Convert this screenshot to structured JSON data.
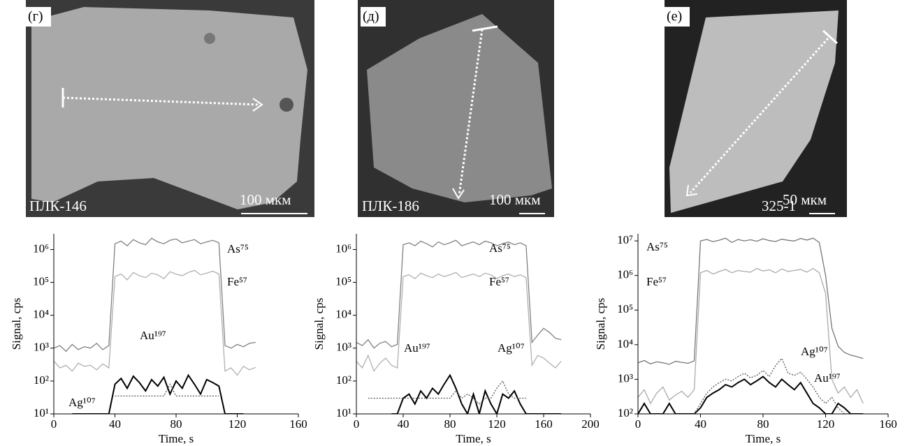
{
  "panels": [
    {
      "label": "(г)",
      "sample": "ПЛК-146",
      "scale": "100 мкм"
    },
    {
      "label": "(д)",
      "sample": "ПЛК-186",
      "scale": "100 мкм"
    },
    {
      "label": "(е)",
      "sample": "325-1",
      "scale": "50 мкм"
    }
  ],
  "chart_data": [
    {
      "type": "line",
      "xlabel": "Time, s",
      "ylabel": "Signal, cps",
      "log_y": true,
      "xlim": [
        0,
        160
      ],
      "xticks": [
        0,
        40,
        80,
        120,
        160
      ],
      "ylim": [
        10,
        3000000
      ],
      "yticks": [
        {
          "value": 10,
          "label": "10¹"
        },
        {
          "value": 100,
          "label": "10²"
        },
        {
          "value": 1000,
          "label": "10³"
        },
        {
          "value": 10000,
          "label": "10⁴"
        },
        {
          "value": 100000,
          "label": "10⁵"
        },
        {
          "value": 1000000,
          "label": "10⁶"
        }
      ],
      "x": [
        0,
        4,
        8,
        12,
        16,
        20,
        24,
        28,
        32,
        36,
        40,
        44,
        48,
        52,
        56,
        60,
        64,
        68,
        72,
        76,
        80,
        84,
        88,
        92,
        96,
        100,
        104,
        108,
        112,
        116,
        120,
        124,
        128,
        132
      ],
      "series": [
        {
          "name": "As⁷⁵",
          "color": "#808080",
          "style": "solid",
          "values": [
            1000,
            1200,
            800,
            1300,
            900,
            1100,
            1000,
            1400,
            900,
            1200,
            1500000,
            1800000,
            1300000,
            2000000,
            1600000,
            1400000,
            2200000,
            1700000,
            1500000,
            1900000,
            2100000,
            1600000,
            1800000,
            2000000,
            1500000,
            1700000,
            1900000,
            1600000,
            1200,
            1000,
            1300,
            1100,
            1400,
            1500
          ]
        },
        {
          "name": "Fe⁵⁷",
          "color": "#b0b0b0",
          "style": "solid",
          "values": [
            400,
            250,
            300,
            200,
            350,
            280,
            300,
            220,
            330,
            250,
            150000,
            180000,
            120000,
            200000,
            160000,
            140000,
            190000,
            170000,
            130000,
            210000,
            180000,
            160000,
            200000,
            230000,
            170000,
            190000,
            220000,
            180000,
            200,
            250,
            150,
            280,
            220,
            260
          ]
        },
        {
          "name": "Au¹⁹⁷",
          "color": "#000000",
          "style": "solid",
          "values": [
            null,
            null,
            null,
            10,
            10,
            10,
            10,
            10,
            10,
            10,
            80,
            120,
            60,
            140,
            90,
            50,
            110,
            70,
            130,
            40,
            100,
            60,
            150,
            80,
            40,
            110,
            90,
            70,
            10,
            10,
            10,
            10,
            null,
            null
          ]
        },
        {
          "name": "Ag¹⁰⁷",
          "color": "#555555",
          "style": "dotted",
          "values": [
            null,
            null,
            null,
            null,
            null,
            null,
            null,
            null,
            null,
            null,
            35,
            35,
            35,
            35,
            35,
            35,
            35,
            35,
            35,
            80,
            35,
            35,
            35,
            35,
            35,
            35,
            35,
            35,
            null,
            null,
            null,
            null,
            null,
            null
          ]
        }
      ]
    },
    {
      "type": "line",
      "xlabel": "Time, s",
      "ylabel": "Signal, cps",
      "log_y": true,
      "xlim": [
        0,
        200
      ],
      "xticks": [
        0,
        40,
        80,
        120,
        160,
        200
      ],
      "ylim": [
        10,
        3000000
      ],
      "yticks": [
        {
          "value": 10,
          "label": "10¹"
        },
        {
          "value": 100,
          "label": "10²"
        },
        {
          "value": 1000,
          "label": "10³"
        },
        {
          "value": 10000,
          "label": "10⁴"
        },
        {
          "value": 100000,
          "label": "10⁵"
        },
        {
          "value": 1000000,
          "label": "10⁶"
        }
      ],
      "x": [
        0,
        5,
        10,
        15,
        20,
        25,
        30,
        35,
        40,
        45,
        50,
        55,
        60,
        65,
        70,
        75,
        80,
        85,
        90,
        95,
        100,
        105,
        110,
        115,
        120,
        125,
        130,
        135,
        140,
        145,
        150,
        155,
        160,
        165,
        170,
        175
      ],
      "series": [
        {
          "name": "As⁷⁵",
          "color": "#808080",
          "style": "solid",
          "values": [
            1500,
            1200,
            1800,
            1000,
            1400,
            1600,
            1100,
            1300,
            1400000,
            1600000,
            1300000,
            1800000,
            1500000,
            1200000,
            1700000,
            1400000,
            1600000,
            1900000,
            1300000,
            1500000,
            1700000,
            1400000,
            1800000,
            1600000,
            1300000,
            1500000,
            1700000,
            1400000,
            1600000,
            1300000,
            1500,
            2500,
            4000,
            3000,
            2000,
            1800
          ]
        },
        {
          "name": "Fe⁵⁷",
          "color": "#b0b0b0",
          "style": "solid",
          "values": [
            400,
            250,
            600,
            200,
            350,
            500,
            300,
            250,
            150000,
            170000,
            130000,
            190000,
            160000,
            140000,
            180000,
            150000,
            170000,
            200000,
            140000,
            160000,
            180000,
            150000,
            190000,
            170000,
            130000,
            160000,
            180000,
            150000,
            170000,
            140000,
            300,
            600,
            500,
            350,
            250,
            400
          ]
        },
        {
          "name": "Au¹⁹⁷",
          "color": "#000000",
          "style": "solid",
          "values": [
            null,
            null,
            null,
            null,
            null,
            null,
            10,
            10,
            30,
            40,
            20,
            50,
            30,
            60,
            40,
            80,
            150,
            60,
            20,
            10,
            40,
            10,
            50,
            20,
            10,
            40,
            30,
            50,
            20,
            10,
            10,
            10,
            10,
            10,
            10,
            10
          ]
        },
        {
          "name": "Ag¹⁰⁷",
          "color": "#555555",
          "style": "dotted",
          "values": [
            null,
            null,
            30,
            30,
            30,
            30,
            30,
            30,
            30,
            30,
            30,
            30,
            30,
            30,
            30,
            30,
            30,
            50,
            30,
            40,
            30,
            20,
            30,
            30,
            60,
            100,
            40,
            30,
            30,
            30,
            null,
            null,
            null,
            null,
            null,
            null
          ]
        }
      ]
    },
    {
      "type": "line",
      "xlabel": "Time, s",
      "ylabel": "Signal, cps",
      "log_y": true,
      "xlim": [
        0,
        160
      ],
      "xticks": [
        0,
        40,
        80,
        120,
        160
      ],
      "ylim": [
        100,
        16000000
      ],
      "yticks": [
        {
          "value": 100,
          "label": "10²"
        },
        {
          "value": 1000,
          "label": "10³"
        },
        {
          "value": 10000,
          "label": "10⁴"
        },
        {
          "value": 100000,
          "label": "10⁵"
        },
        {
          "value": 1000000,
          "label": "10⁶"
        },
        {
          "value": 10000000,
          "label": "10⁷"
        }
      ],
      "x": [
        0,
        4,
        8,
        12,
        16,
        20,
        24,
        28,
        32,
        36,
        40,
        44,
        48,
        52,
        56,
        60,
        64,
        68,
        72,
        76,
        80,
        84,
        88,
        92,
        96,
        100,
        104,
        108,
        112,
        116,
        120,
        124,
        128,
        132,
        136,
        140,
        144
      ],
      "series": [
        {
          "name": "As⁷⁵",
          "color": "#777777",
          "style": "solid",
          "values": [
            3000,
            3500,
            2800,
            3200,
            3000,
            2700,
            3300,
            3100,
            2900,
            3400,
            10000000,
            11000000,
            9500000,
            10500000,
            12000000,
            9000000,
            11000000,
            10000000,
            10800000,
            9800000,
            11500000,
            10200000,
            9600000,
            11200000,
            10400000,
            9900000,
            11800000,
            10600000,
            12000000,
            9000000,
            1000000,
            30000,
            9000,
            6000,
            5000,
            4500,
            4000
          ]
        },
        {
          "name": "Fe⁵⁷",
          "color": "#aaaaaa",
          "style": "solid",
          "values": [
            300,
            500,
            200,
            400,
            600,
            250,
            350,
            450,
            300,
            500,
            1200000,
            1400000,
            1100000,
            1300000,
            1500000,
            1200000,
            1400000,
            1300000,
            1250000,
            1600000,
            1350000,
            1450000,
            1200000,
            1550000,
            1300000,
            1400000,
            1500000,
            1250000,
            1600000,
            1200000,
            300000,
            1000,
            400,
            600,
            300,
            500,
            200
          ]
        },
        {
          "name": "Au¹⁹⁷",
          "color": "#000000",
          "style": "solid",
          "values": [
            100,
            200,
            100,
            100,
            100,
            200,
            100,
            100,
            100,
            100,
            150,
            300,
            400,
            500,
            700,
            600,
            800,
            1000,
            700,
            900,
            1200,
            800,
            600,
            1000,
            700,
            500,
            800,
            400,
            200,
            150,
            100,
            100,
            200,
            150,
            100,
            100,
            100
          ]
        },
        {
          "name": "Ag¹⁰⁷",
          "color": "#555555",
          "style": "dotted",
          "values": [
            100,
            100,
            100,
            100,
            100,
            100,
            100,
            100,
            100,
            100,
            200,
            400,
            600,
            800,
            1000,
            900,
            1200,
            1500,
            1100,
            1300,
            1800,
            1200,
            2500,
            4000,
            1500,
            1300,
            1600,
            1000,
            600,
            300,
            200,
            300,
            150,
            100,
            100,
            null,
            null
          ]
        }
      ]
    }
  ]
}
